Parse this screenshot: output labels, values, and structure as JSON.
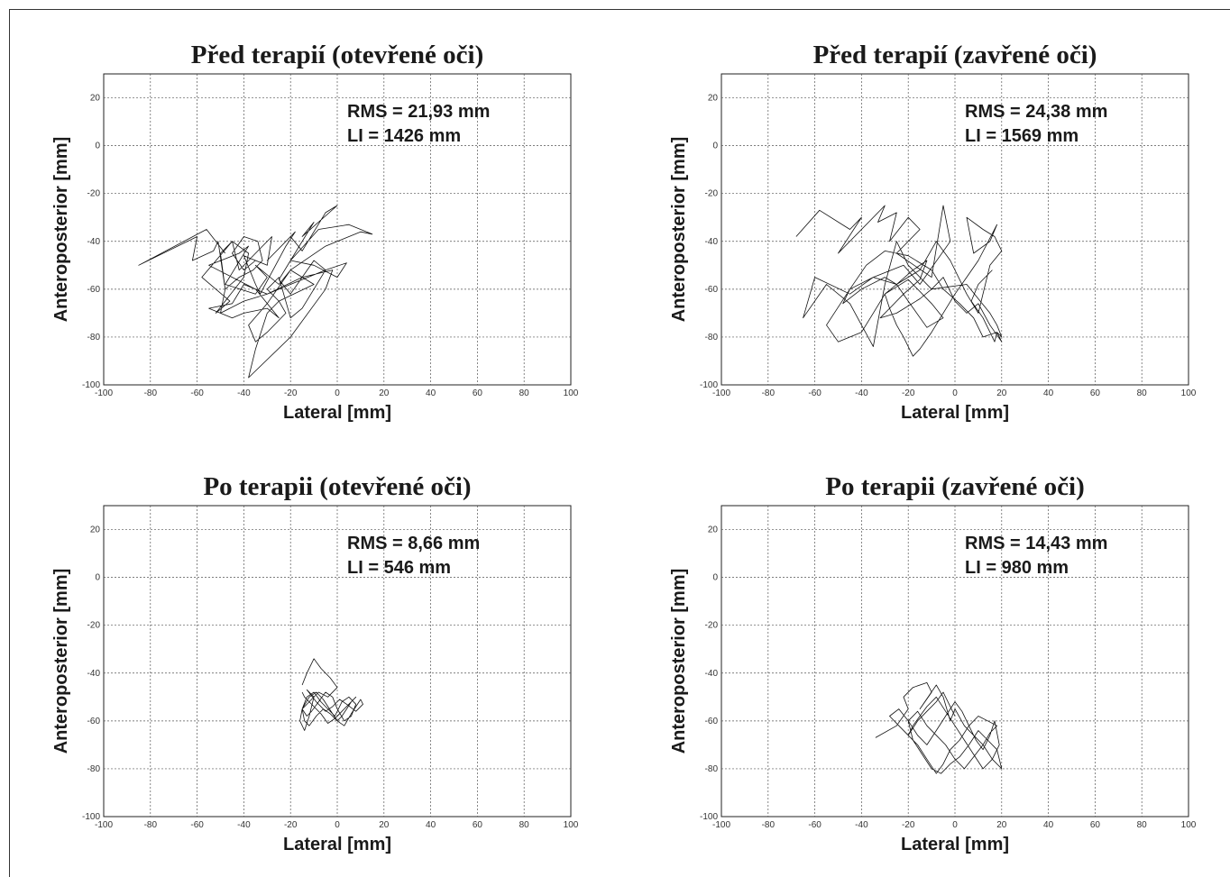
{
  "chart_data": [
    {
      "type": "line",
      "title": "Před terapií (otevřené oči)",
      "xlabel": "Lateral [mm]",
      "ylabel": "Anteroposterior [mm]",
      "xlim": [
        -100,
        100
      ],
      "ylim": [
        -100,
        30
      ],
      "xticks": [
        "-100",
        "-80",
        "-60",
        "-40",
        "-20",
        "0",
        "20",
        "40",
        "60",
        "80",
        "100"
      ],
      "yticks": [
        "20",
        "0",
        "-20",
        "-40",
        "-60",
        "-80",
        "-100"
      ],
      "grid": true,
      "annotations": [
        "RMS = 21,93 mm",
        "LI = 1426 mm"
      ],
      "series": [
        {
          "x": [
            -48,
            -56,
            -85,
            -60,
            -62,
            -53,
            -51,
            -48,
            -50,
            -45,
            -58,
            -46,
            -52,
            -40,
            -38,
            -45,
            -42,
            -32,
            -28,
            -30,
            -40,
            -35,
            -33,
            -22,
            -18,
            -30,
            -20,
            -15,
            -5,
            0,
            -15,
            -10,
            -20,
            -8,
            5,
            15,
            10,
            -5,
            -20,
            -10,
            -25,
            -30,
            -35,
            -38,
            -20,
            -5,
            -2,
            -15,
            -30,
            -40,
            -45,
            -55,
            -45,
            -40,
            -30,
            -25,
            -35,
            -45,
            -55,
            -42,
            -38,
            -48,
            -35,
            -30,
            -35,
            -25,
            -20,
            -30,
            -38,
            -35,
            -30,
            -22,
            -25,
            -30,
            -25,
            -20,
            -15,
            -10,
            -5,
            -10,
            -15,
            -20,
            -25,
            -20,
            -10,
            0,
            4,
            -5,
            -20,
            -30,
            -40,
            -50,
            -48,
            -42,
            -36,
            -32,
            -34,
            -40,
            -45,
            -40,
            -35
          ],
          "y": [
            -45,
            -35,
            -50,
            -38,
            -48,
            -44,
            -40,
            -60,
            -45,
            -40,
            -55,
            -65,
            -70,
            -55,
            -45,
            -40,
            -52,
            -42,
            -38,
            -50,
            -46,
            -58,
            -62,
            -42,
            -36,
            -48,
            -38,
            -44,
            -28,
            -25,
            -38,
            -32,
            -48,
            -35,
            -33,
            -37,
            -36,
            -42,
            -52,
            -58,
            -65,
            -70,
            -85,
            -97,
            -80,
            -60,
            -52,
            -55,
            -62,
            -58,
            -66,
            -68,
            -72,
            -70,
            -68,
            -72,
            -60,
            -55,
            -50,
            -45,
            -42,
            -58,
            -62,
            -55,
            -50,
            -58,
            -52,
            -66,
            -75,
            -82,
            -78,
            -70,
            -65,
            -60,
            -55,
            -72,
            -68,
            -60,
            -52,
            -48,
            -55,
            -62,
            -56,
            -48,
            -50,
            -55,
            -49,
            -52,
            -58,
            -62,
            -65,
            -70,
            -60,
            -55,
            -52,
            -48,
            -40,
            -38,
            -45,
            -52,
            -48
          ]
        }
      ]
    },
    {
      "type": "line",
      "title": "Před terapií (zavřené oči)",
      "xlabel": "Lateral [mm]",
      "ylabel": "Anteroposterior [mm]",
      "xlim": [
        -100,
        100
      ],
      "ylim": [
        -100,
        30
      ],
      "xticks": [
        "-100",
        "-80",
        "-60",
        "-40",
        "-20",
        "0",
        "20",
        "40",
        "60",
        "80",
        "100"
      ],
      "yticks": [
        "20",
        "0",
        "-20",
        "-40",
        "-60",
        "-80",
        "-100"
      ],
      "grid": true,
      "annotations": [
        "RMS = 24,38 mm",
        "LI = 1569 mm"
      ],
      "series": [
        {
          "x": [
            -68,
            -58,
            -45,
            -40,
            -50,
            -30,
            -33,
            -25,
            -28,
            -20,
            -15,
            -25,
            -10,
            -5,
            -2,
            -15,
            -22,
            -35,
            -45,
            -60,
            -65,
            -55,
            -45,
            -40,
            -35,
            -30,
            -25,
            -20,
            -10,
            -5,
            0,
            5,
            10,
            15,
            20,
            18,
            12,
            8,
            2,
            -5,
            -10,
            -20,
            -30,
            -38,
            -45,
            -48,
            -40,
            -30,
            -25,
            -15,
            -8,
            -2,
            5,
            10,
            15,
            20,
            17,
            12,
            5,
            8,
            15,
            18,
            10,
            5,
            0,
            -5,
            -10,
            -15,
            -18,
            -22,
            -25,
            -28,
            -30,
            -20,
            -10,
            -5,
            -12,
            -20,
            -25,
            -30,
            -35,
            -40,
            -50,
            -55,
            -45,
            -35,
            -25,
            -18,
            -12,
            -15,
            -22,
            -28,
            -32,
            -25,
            -15,
            -10,
            5,
            10,
            15,
            18,
            20,
            18,
            17,
            12,
            7,
            10,
            16
          ],
          "y": [
            -38,
            -27,
            -35,
            -30,
            -45,
            -25,
            -32,
            -28,
            -40,
            -30,
            -35,
            -45,
            -55,
            -25,
            -40,
            -58,
            -50,
            -55,
            -62,
            -55,
            -72,
            -58,
            -66,
            -75,
            -84,
            -58,
            -40,
            -50,
            -60,
            -55,
            -65,
            -70,
            -66,
            -75,
            -82,
            -78,
            -80,
            -72,
            -66,
            -60,
            -52,
            -46,
            -44,
            -50,
            -60,
            -66,
            -60,
            -55,
            -58,
            -52,
            -40,
            -48,
            -62,
            -70,
            -50,
            -44,
            -38,
            -35,
            -30,
            -45,
            -40,
            -33,
            -48,
            -55,
            -62,
            -70,
            -78,
            -85,
            -88,
            -80,
            -75,
            -68,
            -62,
            -56,
            -66,
            -72,
            -76,
            -65,
            -58,
            -62,
            -70,
            -78,
            -82,
            -75,
            -60,
            -55,
            -58,
            -52,
            -48,
            -56,
            -62,
            -68,
            -72,
            -70,
            -64,
            -60,
            -58,
            -64,
            -70,
            -75,
            -80,
            -78,
            -82,
            -72,
            -65,
            -58,
            -52
          ]
        }
      ]
    },
    {
      "type": "line",
      "title": "Po terapii (otevřené oči)",
      "xlabel": "Lateral [mm]",
      "ylabel": "Anteroposterior [mm]",
      "xlim": [
        -100,
        100
      ],
      "ylim": [
        -100,
        30
      ],
      "xticks": [
        "-100",
        "-80",
        "-60",
        "-40",
        "-20",
        "0",
        "20",
        "40",
        "60",
        "80",
        "100"
      ],
      "yticks": [
        "20",
        "0",
        "-20",
        "-40",
        "-60",
        "-80",
        "-100"
      ],
      "grid": true,
      "annotations": [
        "RMS = 8,66 mm",
        "LI = 546 mm"
      ],
      "series": [
        {
          "x": [
            -15,
            -13,
            -10,
            -7,
            -3,
            0,
            -4,
            -8,
            -12,
            -15,
            -16,
            -14,
            -12,
            -10,
            -13,
            -9,
            -5,
            -2,
            1,
            4,
            8,
            11,
            10,
            6,
            3,
            0,
            -3,
            -6,
            -9,
            -12,
            -14,
            -15,
            -13,
            -10,
            -7,
            -4,
            -1,
            2,
            5,
            8,
            6,
            3,
            0,
            -2,
            -5,
            -8,
            -11,
            -13,
            -15,
            -12,
            -9,
            -6,
            -4,
            -2,
            0,
            2,
            4,
            6,
            8,
            5,
            2,
            -1,
            -4,
            -7,
            -10,
            -12,
            -14,
            -15
          ],
          "y": [
            -45,
            -40,
            -34,
            -38,
            -42,
            -46,
            -50,
            -48,
            -52,
            -55,
            -60,
            -64,
            -58,
            -50,
            -47,
            -52,
            -56,
            -54,
            -51,
            -53,
            -56,
            -53,
            -51,
            -57,
            -62,
            -60,
            -57,
            -55,
            -58,
            -62,
            -60,
            -55,
            -50,
            -48,
            -52,
            -55,
            -58,
            -52,
            -50,
            -53,
            -58,
            -60,
            -55,
            -50,
            -48,
            -52,
            -56,
            -58,
            -55,
            -50,
            -48,
            -51,
            -54,
            -57,
            -60,
            -58,
            -55,
            -52,
            -50,
            -53,
            -56,
            -59,
            -61,
            -57,
            -54,
            -52,
            -50,
            -48
          ]
        }
      ]
    },
    {
      "type": "line",
      "title": "Po terapii (zavřené oči)",
      "xlabel": "Lateral [mm]",
      "ylabel": "Anteroposterior [mm]",
      "xlim": [
        -100,
        100
      ],
      "ylim": [
        -100,
        30
      ],
      "xticks": [
        "-100",
        "-80",
        "-60",
        "-40",
        "-20",
        "0",
        "20",
        "40",
        "60",
        "80",
        "100"
      ],
      "yticks": [
        "20",
        "0",
        "-20",
        "-40",
        "-60",
        "-80",
        "-100"
      ],
      "grid": true,
      "annotations": [
        "RMS = 14,43 mm",
        "LI = 980 mm"
      ],
      "series": [
        {
          "x": [
            -34,
            -25,
            -20,
            -22,
            -18,
            -12,
            -10,
            -15,
            -8,
            -5,
            -2,
            0,
            4,
            8,
            12,
            16,
            20,
            18,
            14,
            10,
            6,
            2,
            -2,
            -6,
            -10,
            -14,
            -18,
            -20,
            -16,
            -12,
            -8,
            -4,
            0,
            4,
            8,
            12,
            15,
            18,
            14,
            10,
            6,
            2,
            -2,
            -5,
            -8,
            -12,
            -16,
            -20,
            -24,
            -28,
            -24,
            -20,
            -16,
            -12,
            -8,
            -4,
            0,
            3,
            6,
            9,
            12,
            15,
            17,
            19,
            16,
            12,
            8,
            4,
            0,
            -4,
            -8,
            -12,
            -15,
            -18,
            -20,
            -16,
            -12,
            -8,
            -5,
            -2,
            0
          ],
          "y": [
            -67,
            -62,
            -55,
            -50,
            -46,
            -44,
            -48,
            -55,
            -45,
            -50,
            -60,
            -55,
            -62,
            -66,
            -70,
            -76,
            -80,
            -72,
            -68,
            -64,
            -70,
            -75,
            -78,
            -82,
            -80,
            -74,
            -68,
            -60,
            -56,
            -62,
            -66,
            -70,
            -76,
            -80,
            -75,
            -70,
            -65,
            -62,
            -60,
            -58,
            -62,
            -68,
            -72,
            -78,
            -82,
            -76,
            -70,
            -66,
            -62,
            -58,
            -55,
            -60,
            -66,
            -70,
            -64,
            -58,
            -52,
            -56,
            -62,
            -68,
            -72,
            -66,
            -60,
            -70,
            -76,
            -80,
            -74,
            -68,
            -62,
            -56,
            -50,
            -54,
            -58,
            -62,
            -66,
            -60,
            -56,
            -52,
            -48,
            -54,
            -58
          ]
        }
      ]
    }
  ]
}
